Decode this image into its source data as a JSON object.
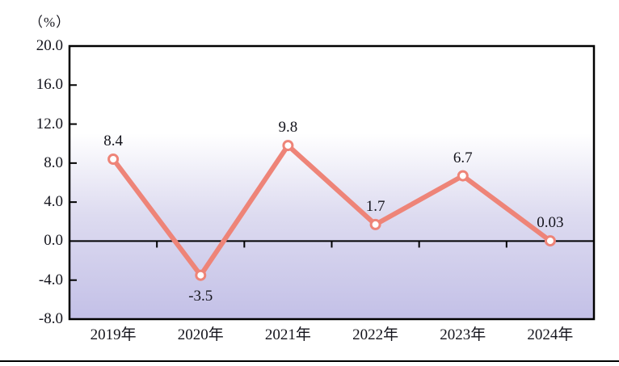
{
  "figure": {
    "unit_label": "（%）"
  },
  "colors": {
    "line": "#ee8478",
    "marker_fill": "#ffffff",
    "axis": "#000000",
    "text": "#14141c",
    "gradient_top": "#ffffff",
    "gradient_mid": "#dddbf0",
    "gradient_bottom": "#c3c0e7"
  },
  "chart_data": {
    "type": "line",
    "title": "",
    "categories": [
      "2019年",
      "2020年",
      "2021年",
      "2022年",
      "2023年",
      "2024年"
    ],
    "values": [
      8.4,
      -3.5,
      9.8,
      1.7,
      6.7,
      0.03
    ],
    "point_labels": [
      "8.4",
      "-3.5",
      "9.8",
      "1.7",
      "6.7",
      "0.03"
    ],
    "point_label_positions": [
      "above",
      "below",
      "above",
      "above",
      "above",
      "above"
    ],
    "xlabel": "",
    "ylabel": "（%）",
    "ylim": [
      -8.0,
      20.0
    ],
    "ytick_step": 4.0,
    "ytick_labels": [
      "20.0",
      "16.0",
      "12.0",
      "8.0",
      "4.0",
      "0.0",
      "-4.0",
      "-8.0"
    ],
    "grid": false,
    "legend": false,
    "zero_line": true,
    "legend_position": "none"
  }
}
